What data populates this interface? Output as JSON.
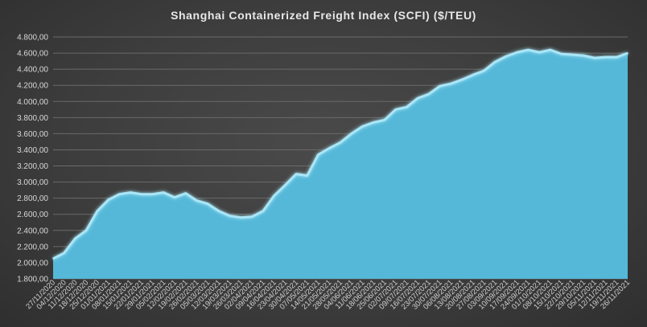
{
  "chart_data": {
    "type": "area",
    "title": "Shanghai Containerized Freight Index  (SCFI) ($/TEU)",
    "xlabel": "",
    "ylabel": "",
    "ylim": [
      1800,
      4800
    ],
    "y_ticks": [
      "1.800,00",
      "2.000,00",
      "2.200,00",
      "2.400,00",
      "2.600,00",
      "2.800,00",
      "3.000,00",
      "3.200,00",
      "3.400,00",
      "3.600,00",
      "3.800,00",
      "4.000,00",
      "4.200,00",
      "4.400,00",
      "4.600,00",
      "4.800,00"
    ],
    "y_tick_values": [
      1800,
      2000,
      2200,
      2400,
      2600,
      2800,
      3000,
      3200,
      3400,
      3600,
      3800,
      4000,
      4200,
      4400,
      4600,
      4800
    ],
    "x_tick_labels": [
      "27/11/2020",
      "04/12/2020",
      "11/12/2020",
      "18/12/2020",
      "25/12/2020",
      "01/01/2021",
      "08/01/2021",
      "15/01/2021",
      "22/01/2021",
      "29/01/2021",
      "05/02/2021",
      "12/02/2021",
      "19/02/2021",
      "26/02/2021",
      "05/03/2021",
      "12/03/2021",
      "19/03/2021",
      "26/03/2021",
      "02/04/2021",
      "09/04/2021",
      "16/04/2021",
      "23/04/2021",
      "30/04/2021",
      "07/05/2021",
      "14/05/2021",
      "21/05/2021",
      "28/05/2021",
      "04/06/2021",
      "11/06/2021",
      "18/06/2021",
      "25/06/2021",
      "02/07/2021",
      "09/07/2021",
      "16/07/2021",
      "23/07/2021",
      "30/07/2021",
      "06/08/2021",
      "13/08/2021",
      "20/08/2021",
      "27/08/2021",
      "03/09/2021",
      "10/09/2021",
      "17/09/2021",
      "24/09/2021",
      "01/10/2021",
      "08/10/2021",
      "15/10/2021",
      "22/10/2021",
      "29/10/2021",
      "05/11/2021",
      "12/11/2021",
      "19/11/2021",
      "26/11/2021"
    ],
    "series": [
      {
        "values": [
          2050,
          2120,
          2300,
          2400,
          2640,
          2780,
          2850,
          2870,
          2850,
          2850,
          2870,
          2810,
          2860,
          2770,
          2730,
          2640,
          2580,
          2560,
          2570,
          2640,
          2830,
          2960,
          3100,
          3080,
          3340,
          3420,
          3490,
          3600,
          3690,
          3740,
          3770,
          3900,
          3930,
          4040,
          4090,
          4190,
          4220,
          4270,
          4330,
          4380,
          4490,
          4560,
          4610,
          4640,
          4610,
          4640,
          4590,
          4580,
          4570,
          4540,
          4550,
          4550,
          4600
        ]
      }
    ],
    "colors": {
      "area_fill": "#55b8d8",
      "area_edge": "#a9e6f7",
      "gridline": "#6a6a6a",
      "text": "#d8d8d8"
    },
    "grid": true,
    "legend": "none"
  }
}
